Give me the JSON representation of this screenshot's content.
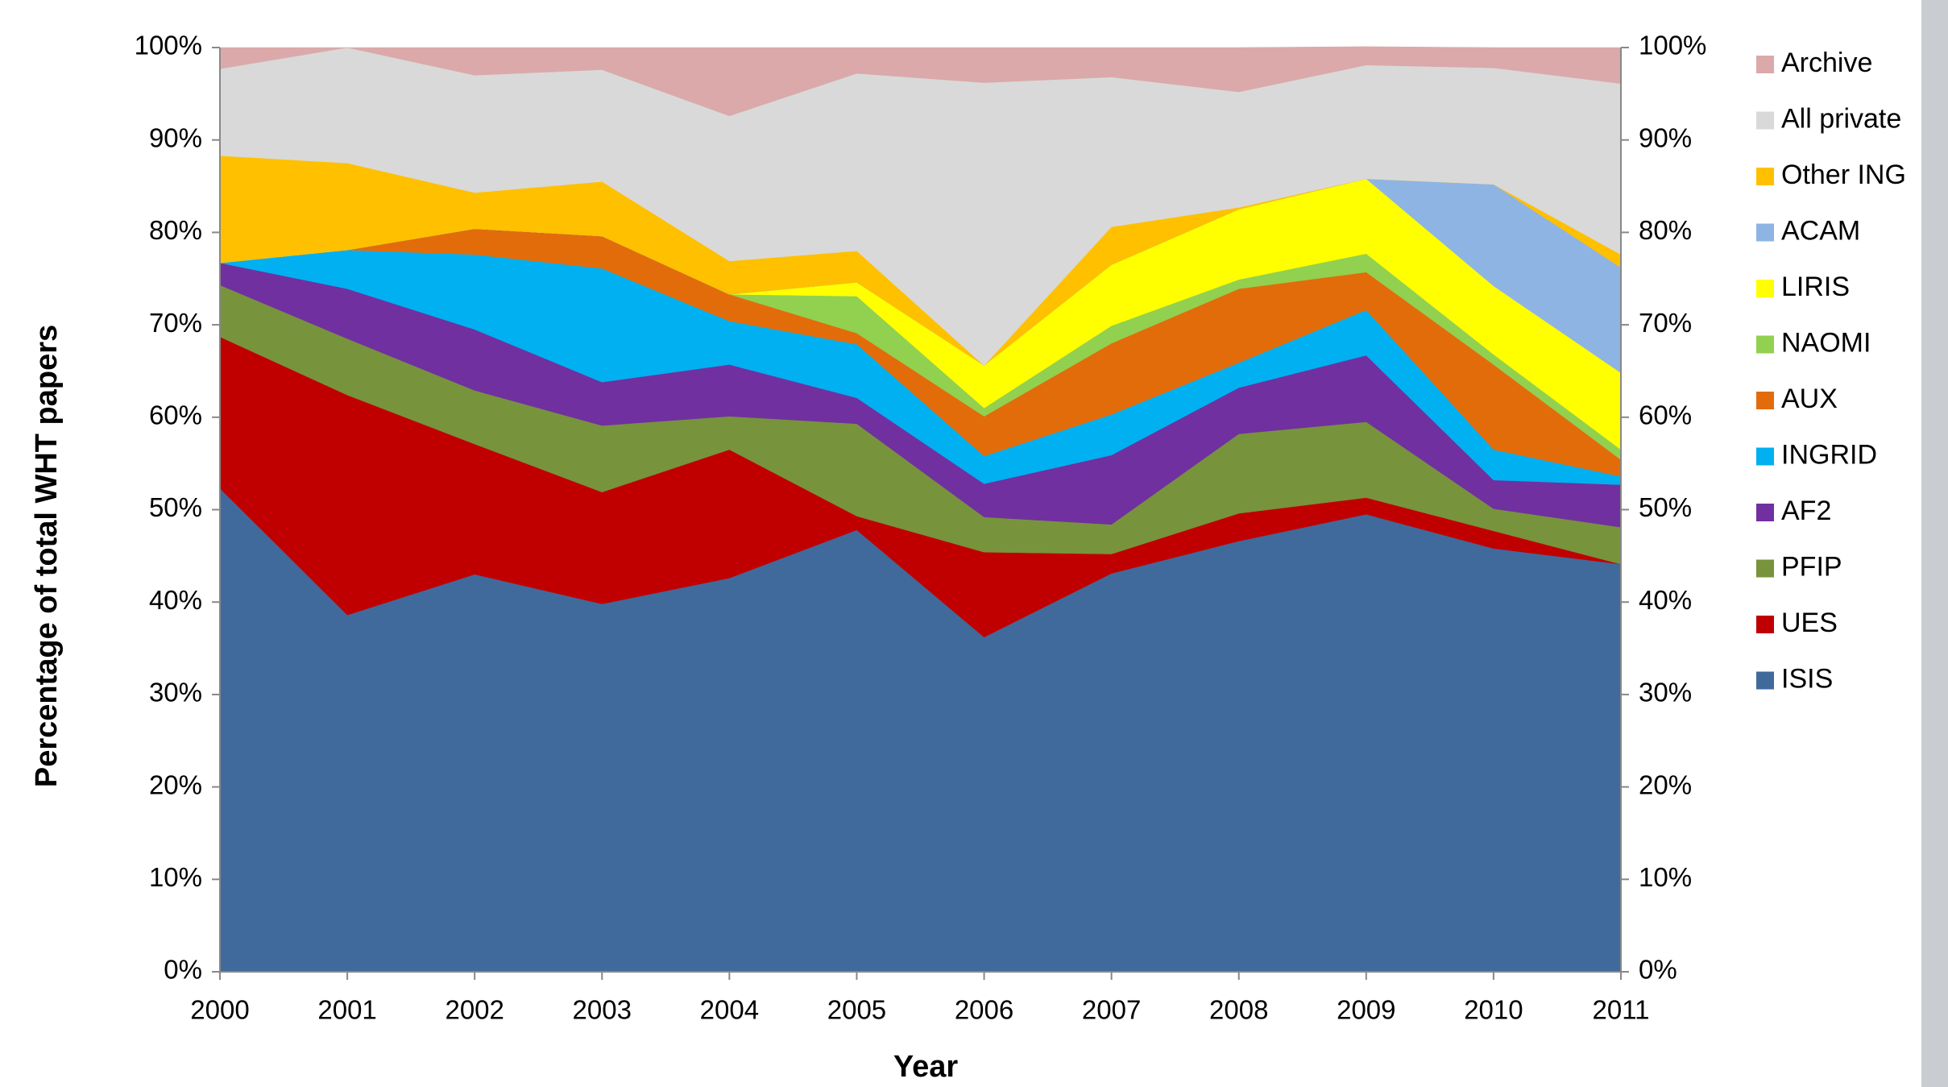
{
  "chart_data": {
    "type": "stacked-area",
    "x_label": "Year",
    "y_label": "Percentage of total WHT papers",
    "x": [
      2000,
      2001,
      2002,
      2003,
      2004,
      2005,
      2006,
      2007,
      2008,
      2009,
      2010,
      2011
    ],
    "xlim": [
      2000,
      2011
    ],
    "xticks": [
      2000,
      2001,
      2002,
      2003,
      2004,
      2005,
      2006,
      2007,
      2008,
      2009,
      2010,
      2011
    ],
    "ylim": [
      0,
      100
    ],
    "yticks": [
      {
        "value": 0,
        "label": "0%"
      },
      {
        "value": 10,
        "label": "10%"
      },
      {
        "value": 20,
        "label": "20%"
      },
      {
        "value": 30,
        "label": "30%"
      },
      {
        "value": 40,
        "label": "40%"
      },
      {
        "value": 50,
        "label": "50%"
      },
      {
        "value": 60,
        "label": "60%"
      },
      {
        "value": 70,
        "label": "70%"
      },
      {
        "value": 80,
        "label": "80%"
      },
      {
        "value": 90,
        "label": "90%"
      },
      {
        "value": 100,
        "label": "100%"
      }
    ],
    "y2lim": [
      0,
      100
    ],
    "y2ticks": [
      {
        "value": 0,
        "label": "0%"
      },
      {
        "value": 10,
        "label": "10%"
      },
      {
        "value": 20,
        "label": "20%"
      },
      {
        "value": 30,
        "label": "30%"
      },
      {
        "value": 40,
        "label": "40%"
      },
      {
        "value": 50,
        "label": "50%"
      },
      {
        "value": 60,
        "label": "60%"
      },
      {
        "value": 70,
        "label": "70%"
      },
      {
        "value": 80,
        "label": "80%"
      },
      {
        "value": 90,
        "label": "90%"
      },
      {
        "value": 100,
        "label": "100%"
      }
    ],
    "legend": "right",
    "series": [
      {
        "name": "ISIS",
        "color": "#406a9c",
        "values": [
          52.3,
          38.6,
          43.0,
          39.8,
          42.6,
          47.8,
          36.2,
          43.1,
          46.6,
          49.5,
          45.8,
          44.1
        ]
      },
      {
        "name": "UES",
        "color": "#c00000",
        "values": [
          16.4,
          23.8,
          14.1,
          12.1,
          13.9,
          1.5,
          9.2,
          2.1,
          3.0,
          1.8,
          1.9,
          0
        ]
      },
      {
        "name": "PFIP",
        "color": "#77933c",
        "values": [
          5.6,
          6.1,
          5.8,
          7.2,
          3.6,
          10.0,
          3.8,
          3.2,
          8.6,
          8.2,
          2.4,
          4.0
        ]
      },
      {
        "name": "AF2",
        "color": "#7030a0",
        "values": [
          2.4,
          5.4,
          6.6,
          4.7,
          5.6,
          2.8,
          3.6,
          7.5,
          5.0,
          7.2,
          3.1,
          4.6
        ]
      },
      {
        "name": "INGRID",
        "color": "#00b0f0",
        "values": [
          0,
          4.2,
          8.1,
          12.3,
          4.7,
          5.8,
          3.0,
          4.4,
          2.7,
          4.9,
          3.3,
          0.9
        ]
      },
      {
        "name": "AUX",
        "color": "#e36c0a",
        "values": [
          0,
          0,
          2.8,
          3.5,
          2.9,
          1.2,
          4.3,
          7.7,
          8.0,
          4.1,
          9.2,
          1.8
        ]
      },
      {
        "name": "NAOMI",
        "color": "#92d050",
        "values": [
          0,
          0,
          0,
          0,
          0,
          4.0,
          0.9,
          1.9,
          1.0,
          2.0,
          1.1,
          1.1
        ]
      },
      {
        "name": "LIRIS",
        "color": "#ffff00",
        "values": [
          0,
          0,
          0,
          0,
          0,
          1.5,
          4.6,
          6.6,
          7.6,
          8.1,
          7.4,
          8.3
        ]
      },
      {
        "name": "ACAM",
        "color": "#8eb4e3",
        "values": [
          0,
          0,
          0,
          0,
          0,
          0,
          0,
          0,
          0,
          0,
          11.0,
          11.4
        ]
      },
      {
        "name": "Other ING",
        "color": "#ffc000",
        "values": [
          11.6,
          9.4,
          3.9,
          5.9,
          3.6,
          3.4,
          0,
          4.1,
          0.2,
          0,
          0,
          1.4
        ]
      },
      {
        "name": "All private",
        "color": "#d9d9d9",
        "values": [
          9.4,
          12.5,
          12.7,
          12.1,
          15.7,
          19.2,
          30.6,
          16.2,
          12.5,
          12.3,
          12.6,
          18.5
        ]
      },
      {
        "name": "Archive",
        "color": "#dba9a9",
        "values": [
          2.3,
          0,
          3.0,
          2.4,
          7.4,
          2.8,
          3.8,
          3.2,
          4.8,
          2.0,
          2.2,
          3.9
        ]
      }
    ]
  }
}
